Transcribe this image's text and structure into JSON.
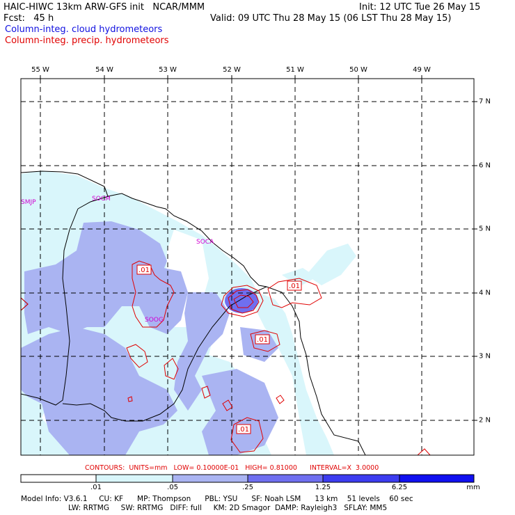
{
  "header": {
    "model_title": "HAIC-HIWC 13km ARW-GFS init   NCAR/MMM",
    "init": "Init: 12 UTC Tue 26 May 15",
    "fcst": "Fcst:   45 h",
    "valid": "Valid: 09 UTC Thu 28 May 15 (06 LST Thu 28 May 15)",
    "field_cloud": "Column-integ. cloud hydrometeors",
    "field_precip": "Column-integ. precip. hydrometeors"
  },
  "axes": {
    "longitudes": [
      "55 W",
      "54 W",
      "53 W",
      "52 W",
      "51 W",
      "50 W",
      "49 W"
    ],
    "latitudes": [
      "7 N",
      "6 N",
      "5 N",
      "4 N",
      "3 N",
      "2 N"
    ]
  },
  "stations": [
    "SMJP",
    "SOCA",
    "SOCM",
    "SOOG"
  ],
  "contour_labels": [
    ".01",
    ".01",
    ".01",
    ".01"
  ],
  "contours_info": "CONTOURS:  UNITS=mm   LOW= 0.10000E-01   HIGH= 0.81000      INTERVAL=X  3.0000",
  "colorbar": {
    "labels": [
      ".01",
      ".05",
      ".25",
      "1.25",
      "6.25"
    ],
    "unit": "mm",
    "colors": [
      "#ffffff",
      "#d9f6fb",
      "#aab4f2",
      "#6f6ff0",
      "#3c3cf0",
      "#1010f0"
    ]
  },
  "model_info": {
    "line1": "Model Info: V3.6.1     CU: KF      MP: Thompson      PBL: YSU      SF: Noah LSM      13 km    51 levels    60 sec",
    "line2": "LW: RRTMG     SW: RRTMG   DIFF: full     KM: 2D Smagor  DAMP: Rayleigh3   SFLAY: MM5"
  },
  "colors": {
    "cloud_light": "#d9f6fb",
    "cloud_mid": "#aab4f2",
    "cloud_dark": "#6f6ff0",
    "precip_contour": "#e00000",
    "station": "#d000d0"
  }
}
